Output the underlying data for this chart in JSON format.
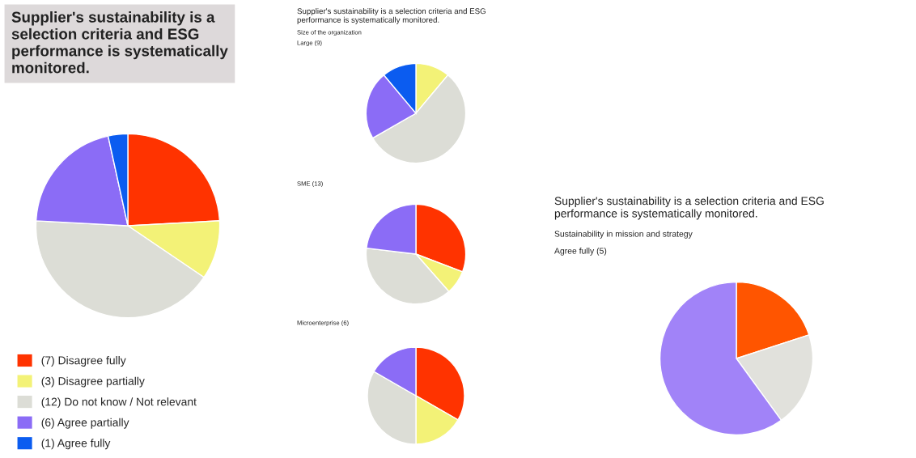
{
  "chart_data": [
    {
      "type": "pie",
      "title": "Supplier's sustainability is a selection criteria and ESG performance is systematically monitored.",
      "categories": [
        "(7) Disagree fully",
        "(3) Disagree partially",
        "(12) Do not know / Not relevant",
        "(6) Agree partially",
        "(1) Agree fully"
      ],
      "values": [
        7,
        3,
        12,
        6,
        1
      ],
      "colors": [
        "#ff3300",
        "#f3f277",
        "#dcddd6",
        "#8b6cf6",
        "#0b5cf0"
      ],
      "legend": "bottom"
    },
    {
      "type": "pie",
      "title": "Supplier's sustainability is a selection criteria and ESG performance is systematically monitored.",
      "subtitle": "Size of the organization",
      "annotations": [
        "Large (9)"
      ],
      "categories": [
        null,
        null,
        null,
        null
      ],
      "values": [
        11.1,
        55.6,
        22.2,
        11.1
      ],
      "colors": [
        "#f3f277",
        "#dcddd6",
        "#8b6cf6",
        "#0b5cf0"
      ]
    },
    {
      "type": "pie",
      "title": "SME (13)",
      "categories": [
        null,
        null,
        null,
        null
      ],
      "values": [
        30.8,
        7.7,
        38.4,
        23.1
      ],
      "colors": [
        "#ff3300",
        "#f3f277",
        "#dcddd6",
        "#8b6cf6"
      ]
    },
    {
      "type": "pie",
      "title": "Microenterprise (6)",
      "categories": [
        null,
        null,
        null,
        null
      ],
      "values": [
        33.3,
        16.7,
        33.3,
        16.7
      ],
      "colors": [
        "#ff3300",
        "#f3f277",
        "#dcddd6",
        "#8b6cf6"
      ]
    },
    {
      "type": "pie",
      "title": "Supplier's sustainability is a selection criteria and ESG performance is systematically monitored.",
      "subtitle": "Sustainability in mission and strategy",
      "annotations": [
        "Agree fully (5)"
      ],
      "categories": [
        null,
        null,
        null
      ],
      "values": [
        20,
        20,
        60
      ],
      "colors": [
        "#ff5500",
        "#e1e1dc",
        "#a183f8"
      ]
    }
  ]
}
